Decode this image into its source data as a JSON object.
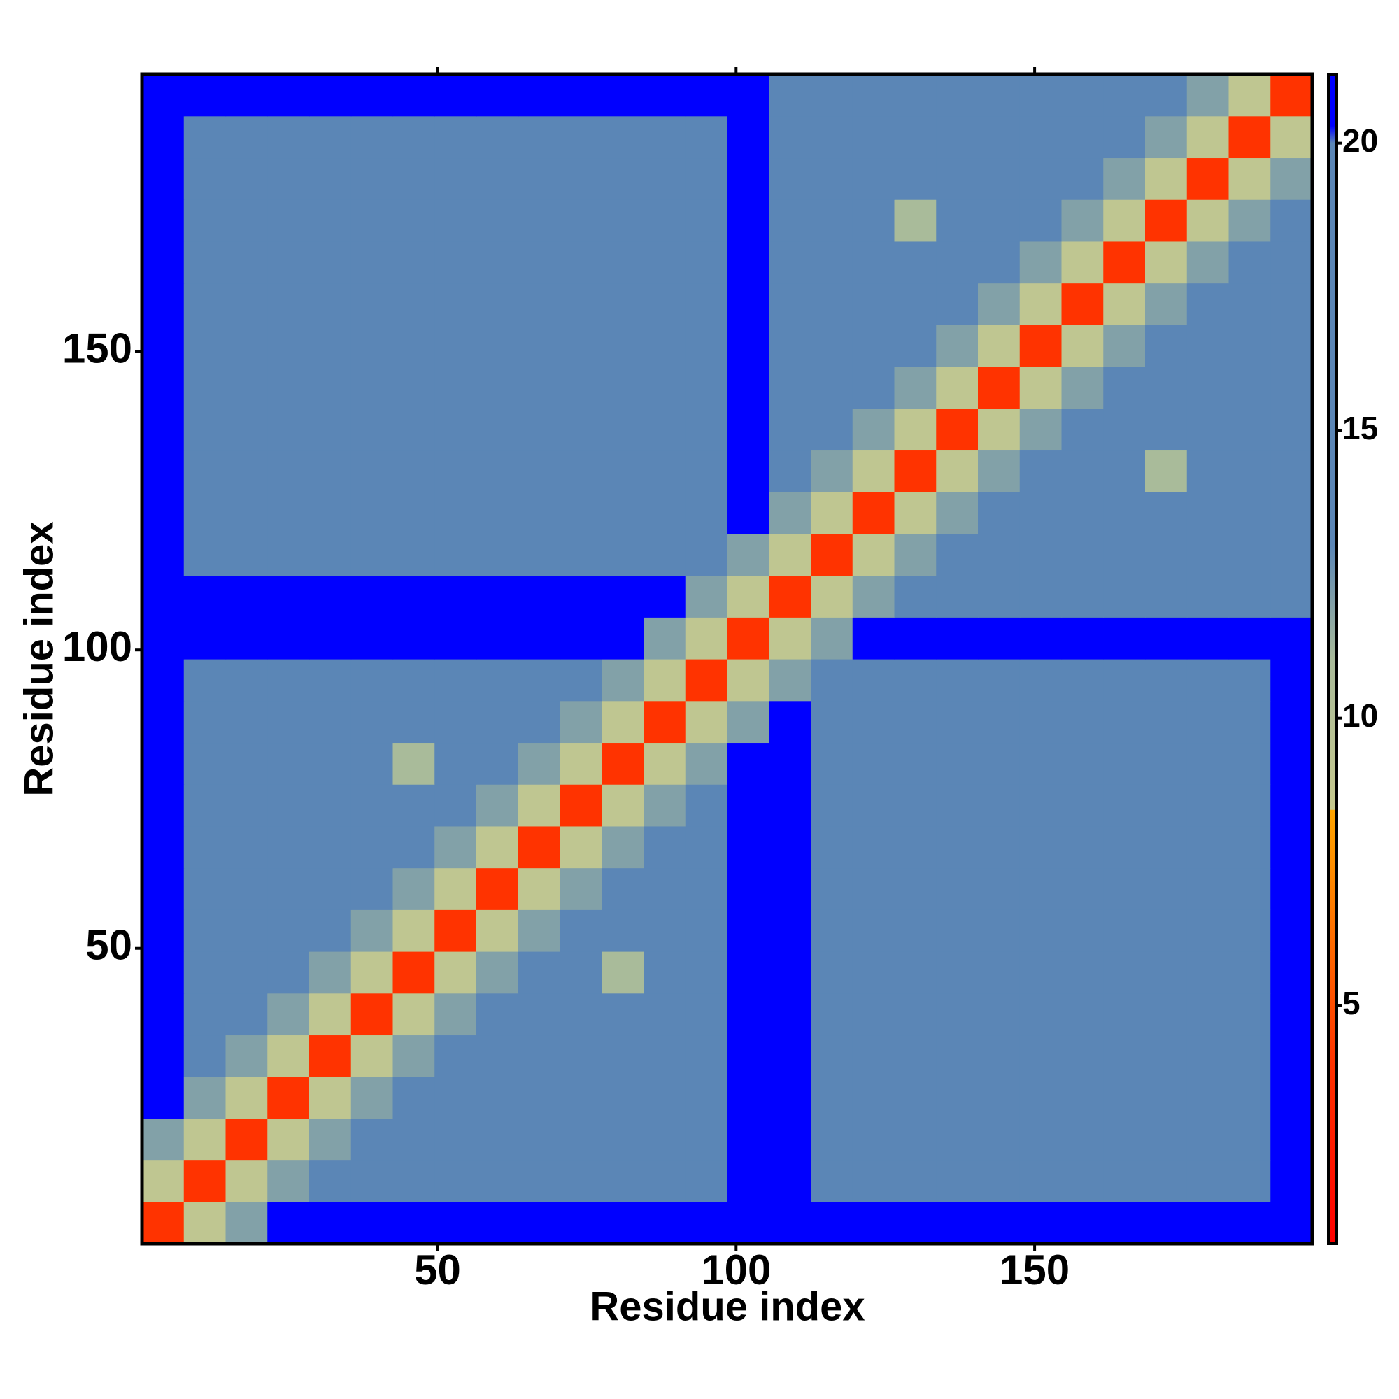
{
  "chart_data": {
    "type": "heatmap",
    "x_label": "Residue index",
    "y_label": "Residue index",
    "xlim": [
      0.5,
      196.5
    ],
    "ylim": [
      0.5,
      196.5
    ],
    "xticks": [
      50,
      100,
      150
    ],
    "yticks": [
      50,
      100,
      150
    ],
    "xbins": [
      0.5,
      7.5,
      14.5,
      21.5,
      28.5,
      35.5,
      42.5,
      49.5,
      56.5,
      63.5,
      70.5,
      77.5,
      84.5,
      91.5,
      98.5,
      105.5,
      112.5,
      119.5,
      126.5,
      133.5,
      140.5,
      147.5,
      154.5,
      161.5,
      168.5,
      175.5,
      182.5,
      189.5,
      196.5
    ],
    "ybins": [
      0.5,
      7.5,
      14.5,
      21.5,
      28.5,
      35.5,
      42.5,
      49.5,
      56.5,
      63.5,
      70.5,
      77.5,
      84.5,
      91.5,
      98.5,
      105.5,
      112.5,
      119.5,
      126.5,
      133.5,
      140.5,
      147.5,
      154.5,
      161.5,
      168.5,
      175.5,
      182.5,
      189.5,
      196.5
    ],
    "values": [
      [
        4,
        9,
        12,
        21,
        21,
        21,
        21,
        21,
        21,
        21,
        21,
        21,
        21,
        21,
        21,
        21,
        21,
        21,
        21,
        21,
        21,
        21,
        21,
        21,
        21,
        21,
        21,
        21
      ],
      [
        9,
        4,
        9,
        12,
        16,
        16,
        16,
        16,
        16,
        16,
        16,
        16,
        16,
        18,
        21,
        21,
        20,
        20,
        20,
        20,
        20,
        20,
        20,
        20,
        20,
        20,
        20,
        21
      ],
      [
        12,
        9,
        4,
        9,
        12,
        16,
        16,
        16,
        16,
        16,
        16,
        16,
        16,
        18,
        21,
        21,
        19,
        19,
        19,
        19,
        19,
        19,
        19,
        19,
        19,
        19,
        20,
        21
      ],
      [
        21,
        12,
        9,
        4,
        9,
        12,
        16,
        16,
        16,
        16,
        16,
        16,
        16,
        18,
        21,
        21,
        19,
        19,
        19,
        19,
        19,
        19,
        19,
        19,
        19,
        19,
        20,
        21
      ],
      [
        21,
        16,
        12,
        9,
        4,
        9,
        12,
        16,
        16,
        16,
        16,
        16,
        16,
        18,
        21,
        21,
        19,
        19,
        19,
        19,
        19,
        19,
        19,
        19,
        19,
        19,
        20,
        21
      ],
      [
        21,
        16,
        16,
        12,
        9,
        4,
        9,
        12,
        16,
        16,
        16,
        16,
        16,
        18,
        21,
        21,
        19,
        19,
        19,
        19,
        19,
        19,
        19,
        19,
        19,
        19,
        20,
        21
      ],
      [
        21,
        16,
        16,
        16,
        12,
        9,
        4,
        9,
        12,
        16,
        16,
        11,
        16,
        18,
        21,
        21,
        19,
        19,
        19,
        19,
        19,
        19,
        19,
        19,
        19,
        19,
        20,
        21
      ],
      [
        21,
        16,
        16,
        16,
        16,
        12,
        9,
        4,
        9,
        12,
        16,
        16,
        16,
        18,
        21,
        21,
        19,
        19,
        19,
        19,
        19,
        19,
        19,
        19,
        19,
        19,
        20,
        21
      ],
      [
        21,
        16,
        16,
        16,
        16,
        16,
        12,
        9,
        4,
        9,
        12,
        16,
        16,
        18,
        21,
        21,
        19,
        19,
        19,
        19,
        19,
        19,
        19,
        19,
        19,
        19,
        20,
        21
      ],
      [
        21,
        16,
        16,
        16,
        16,
        16,
        16,
        12,
        9,
        4,
        9,
        12,
        16,
        18,
        21,
        21,
        19,
        19,
        19,
        19,
        19,
        19,
        19,
        19,
        19,
        19,
        20,
        21
      ],
      [
        21,
        16,
        16,
        16,
        16,
        16,
        16,
        16,
        12,
        9,
        4,
        9,
        12,
        18,
        21,
        21,
        19,
        19,
        19,
        19,
        19,
        19,
        19,
        19,
        19,
        19,
        20,
        21
      ],
      [
        21,
        16,
        16,
        16,
        16,
        16,
        11,
        16,
        16,
        12,
        9,
        4,
        9,
        12,
        21,
        21,
        19,
        19,
        19,
        19,
        19,
        19,
        19,
        19,
        19,
        19,
        20,
        21
      ],
      [
        21,
        16,
        16,
        16,
        16,
        16,
        16,
        16,
        16,
        16,
        12,
        9,
        4,
        9,
        12,
        21,
        19,
        19,
        19,
        19,
        19,
        19,
        19,
        19,
        19,
        19,
        20,
        21
      ],
      [
        21,
        18,
        18,
        18,
        18,
        18,
        18,
        18,
        18,
        18,
        18,
        12,
        9,
        4,
        9,
        12,
        20,
        20,
        20,
        20,
        20,
        20,
        20,
        20,
        20,
        20,
        20,
        21
      ],
      [
        21,
        21,
        21,
        21,
        21,
        21,
        21,
        21,
        21,
        21,
        21,
        21,
        12,
        9,
        4,
        9,
        12,
        21,
        21,
        21,
        21,
        21,
        21,
        21,
        21,
        21,
        21,
        21
      ],
      [
        21,
        21,
        21,
        21,
        21,
        21,
        21,
        21,
        21,
        21,
        21,
        21,
        21,
        12,
        9,
        4,
        9,
        12,
        18,
        18,
        18,
        18,
        18,
        18,
        18,
        18,
        18,
        18
      ],
      [
        21,
        20,
        19,
        19,
        19,
        19,
        19,
        19,
        19,
        19,
        19,
        19,
        19,
        20,
        12,
        9,
        4,
        9,
        12,
        16,
        16,
        16,
        16,
        16,
        16,
        16,
        16,
        18
      ],
      [
        21,
        20,
        19,
        19,
        19,
        19,
        19,
        19,
        19,
        19,
        19,
        19,
        19,
        20,
        21,
        12,
        9,
        4,
        9,
        12,
        16,
        16,
        16,
        16,
        16,
        16,
        16,
        18
      ],
      [
        21,
        20,
        19,
        19,
        19,
        19,
        19,
        19,
        19,
        19,
        19,
        19,
        19,
        20,
        21,
        18,
        12,
        9,
        4,
        9,
        12,
        16,
        16,
        16,
        11,
        16,
        16,
        18
      ],
      [
        21,
        20,
        19,
        19,
        19,
        19,
        19,
        19,
        19,
        19,
        19,
        19,
        19,
        20,
        21,
        18,
        16,
        12,
        9,
        4,
        9,
        12,
        16,
        16,
        16,
        16,
        16,
        18
      ],
      [
        21,
        20,
        19,
        19,
        19,
        19,
        19,
        19,
        19,
        19,
        19,
        19,
        19,
        20,
        21,
        18,
        16,
        16,
        12,
        9,
        4,
        9,
        12,
        16,
        16,
        16,
        16,
        18
      ],
      [
        21,
        20,
        19,
        19,
        19,
        19,
        19,
        19,
        19,
        19,
        19,
        19,
        19,
        20,
        21,
        18,
        16,
        16,
        16,
        12,
        9,
        4,
        9,
        12,
        16,
        16,
        16,
        18
      ],
      [
        21,
        20,
        19,
        19,
        19,
        19,
        19,
        19,
        19,
        19,
        19,
        19,
        19,
        20,
        21,
        18,
        16,
        16,
        16,
        16,
        12,
        9,
        4,
        9,
        12,
        16,
        16,
        18
      ],
      [
        21,
        20,
        19,
        19,
        19,
        19,
        19,
        19,
        19,
        19,
        19,
        19,
        19,
        20,
        21,
        18,
        16,
        16,
        16,
        16,
        16,
        12,
        9,
        4,
        9,
        12,
        16,
        18
      ],
      [
        21,
        20,
        19,
        19,
        19,
        19,
        19,
        19,
        19,
        19,
        19,
        19,
        19,
        20,
        21,
        18,
        16,
        16,
        11,
        16,
        16,
        16,
        12,
        9,
        4,
        9,
        12,
        18
      ],
      [
        21,
        20,
        19,
        19,
        19,
        19,
        19,
        19,
        19,
        19,
        19,
        19,
        19,
        20,
        21,
        18,
        16,
        16,
        16,
        16,
        16,
        16,
        16,
        12,
        9,
        4,
        9,
        12
      ],
      [
        21,
        20,
        20,
        20,
        20,
        20,
        20,
        20,
        20,
        20,
        20,
        20,
        20,
        20,
        21,
        18,
        16,
        16,
        16,
        16,
        16,
        16,
        16,
        16,
        12,
        9,
        4,
        9
      ],
      [
        21,
        21,
        21,
        21,
        21,
        21,
        21,
        21,
        21,
        21,
        21,
        21,
        21,
        21,
        21,
        18,
        18,
        18,
        18,
        18,
        18,
        18,
        18,
        18,
        18,
        12,
        9,
        4
      ]
    ],
    "colorbar": {
      "lim": [
        0.86,
        21.2
      ],
      "ticks": [
        5,
        10,
        15,
        20
      ],
      "stops": [
        {
          "value": 0.86,
          "color": "#ff0000"
        },
        {
          "value": 4,
          "color": "#ff3300"
        },
        {
          "value": 7.5,
          "color": "#ff9000"
        },
        {
          "value": 8.4,
          "color": "#ffa500"
        },
        {
          "value": 8.41,
          "color": "#c6c98e"
        },
        {
          "value": 11,
          "color": "#a9bb9a"
        },
        {
          "value": 13,
          "color": "#5b86b6"
        },
        {
          "value": 20,
          "color": "#5b86b6"
        },
        {
          "value": 20.3,
          "color": "#0000ff"
        },
        {
          "value": 21.2,
          "color": "#0000ff"
        }
      ]
    }
  }
}
